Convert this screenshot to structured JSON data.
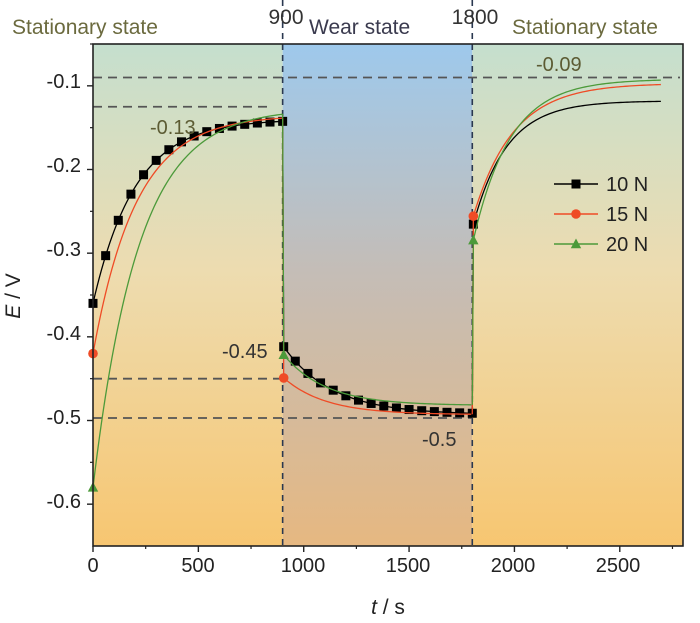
{
  "chart_data": {
    "type": "line",
    "xlabel_var": "t",
    "xlabel_unit": " / s",
    "ylabel_var": "E",
    "ylabel_unit": " / V",
    "xlim": [
      0,
      2800
    ],
    "ylim": [
      -0.65,
      -0.05
    ],
    "xticks": [
      0,
      500,
      1000,
      1500,
      2000,
      2500
    ],
    "yticks": [
      -0.6,
      -0.5,
      -0.4,
      -0.3,
      -0.2,
      -0.1
    ],
    "xtick_labels": [
      "0",
      "500",
      "1000",
      "1500",
      "2000",
      "2500"
    ],
    "ytick_labels": [
      "-0.6",
      "-0.5",
      "-0.4",
      "-0.3",
      "-0.2",
      "-0.1"
    ],
    "regions": [
      {
        "label": "Stationary state",
        "x_start": 0,
        "x_end": 900
      },
      {
        "label": "Wear state",
        "x_start": 900,
        "x_end": 1800
      },
      {
        "label": "Stationary state",
        "x_start": 1800,
        "x_end": 2800
      }
    ],
    "boundary_labels": [
      "900",
      "1800"
    ],
    "boundaries": [
      900,
      1800
    ],
    "annotations": [
      {
        "text": "-0.09",
        "y": -0.09
      },
      {
        "text": "-0.13",
        "y": -0.125
      },
      {
        "text": "-0.45",
        "y": -0.45
      },
      {
        "text": "-0.5",
        "y": -0.497
      }
    ],
    "legend_position": "right",
    "series": [
      {
        "name": "10 N",
        "marker": "square",
        "color": "#000000",
        "params": {
          "a0": -0.36,
          "a1": -0.14,
          "ta": 200,
          "b0": -0.41,
          "b1": -0.493,
          "tb": 230,
          "c0": -0.27,
          "c1": -0.118,
          "tc": 160
        }
      },
      {
        "name": "15 N",
        "marker": "circle",
        "color": "#ef4b26",
        "params": {
          "a0": -0.42,
          "a1": -0.135,
          "ta": 205,
          "b0": -0.448,
          "b1": -0.493,
          "tb": 200,
          "c0": -0.26,
          "c1": -0.097,
          "tc": 190
        }
      },
      {
        "name": "20 N",
        "marker": "triangle",
        "color": "#4c9a3a",
        "params": {
          "a0": -0.58,
          "a1": -0.127,
          "ta": 215,
          "b0": -0.42,
          "b1": -0.482,
          "tb": 200,
          "c0": -0.29,
          "c1": -0.092,
          "tc": 175
        }
      }
    ]
  }
}
